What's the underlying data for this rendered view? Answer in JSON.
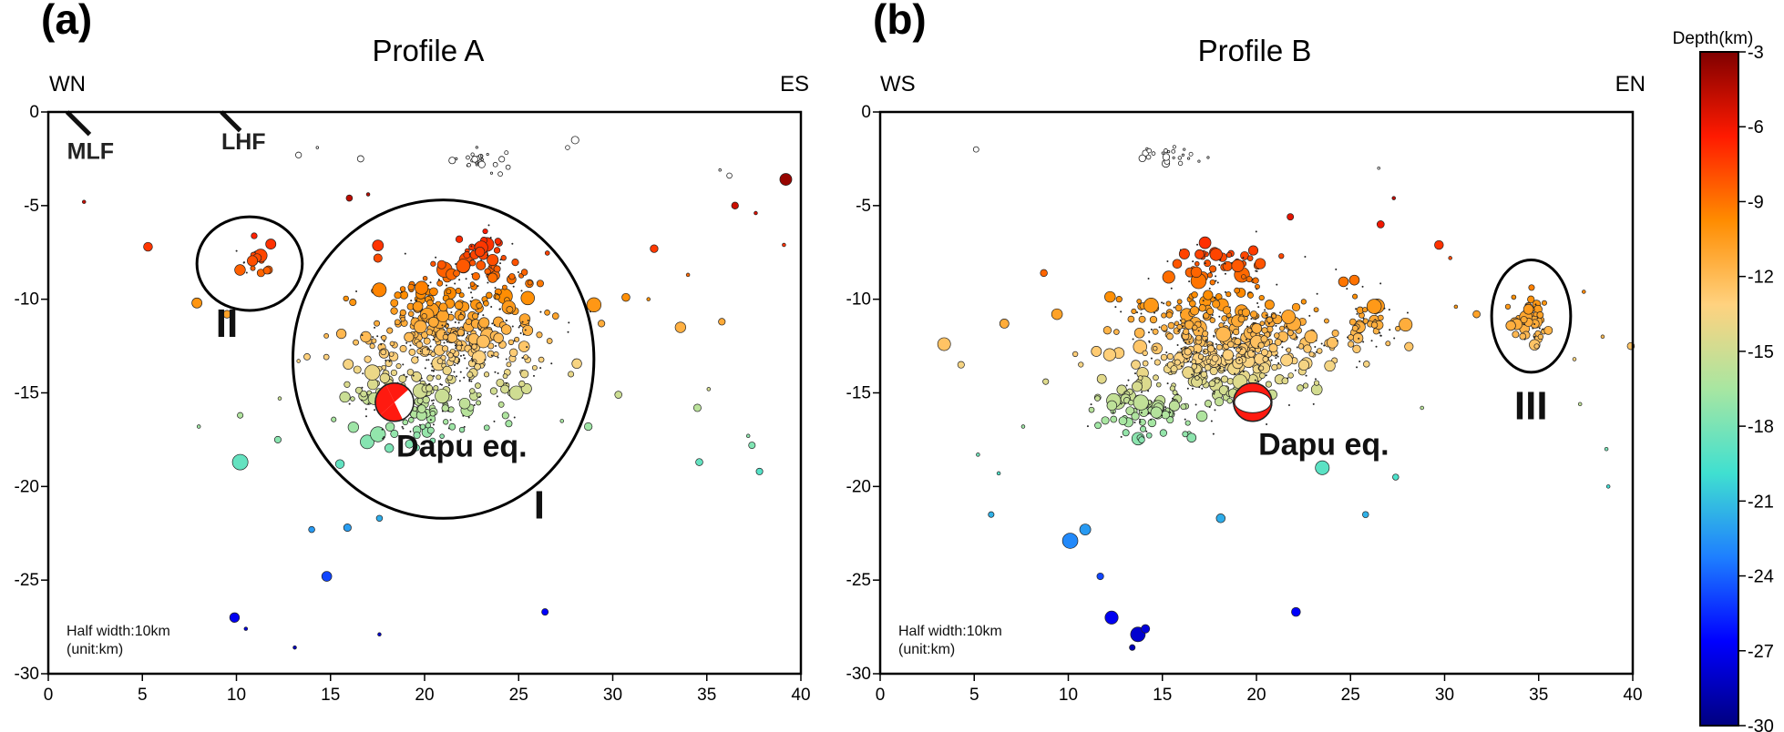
{
  "chart_data": [
    {
      "type": "scatter",
      "panel_label": "(a)",
      "title": "Profile A",
      "left_end_label": "WN",
      "right_end_label": "ES",
      "xlim": [
        0,
        40
      ],
      "ylim": [
        -30,
        0
      ],
      "xticks": [
        0,
        5,
        10,
        15,
        20,
        25,
        30,
        35,
        40
      ],
      "yticks": [
        0,
        -5,
        -10,
        -15,
        -20,
        -25,
        -30
      ],
      "half_width_note": "Half width:10km",
      "unit_note": "(unit:km)",
      "faults": [
        {
          "label": "MLF",
          "x1": 1.0,
          "y1": 0.0,
          "x2": 2.2,
          "y2": -1.2,
          "label_x": 1.0,
          "label_y": -2.5
        },
        {
          "label": "LHF",
          "x1": 9.2,
          "y1": 0.0,
          "x2": 10.2,
          "y2": -1.0,
          "label_x": 9.2,
          "label_y": -2.0
        }
      ],
      "clusters": [
        {
          "label": "I",
          "cx": 21.0,
          "cy": -13.2,
          "rx": 8.0,
          "ry": 8.5,
          "label_x": 25.8,
          "label_y": -21.7
        },
        {
          "label": "II",
          "cx": 10.7,
          "cy": -8.1,
          "rx": 2.8,
          "ry": 2.5,
          "label_x": 8.9,
          "label_y": -12.0
        }
      ],
      "mainshock": {
        "label": "Dapu eq.",
        "x": 18.4,
        "y": -15.5,
        "depth": -16,
        "label_x": 18.5,
        "label_y": -18.4,
        "style": "strike-slip"
      },
      "clouds": [
        {
          "cx": 21.5,
          "cy": -12.0,
          "sx": 4.2,
          "sy": 3.4,
          "n": 520
        },
        {
          "cx": 19.5,
          "cy": -15.5,
          "sx": 3.0,
          "sy": 1.8,
          "n": 140
        },
        {
          "cx": 23.2,
          "cy": -7.6,
          "sx": 1.4,
          "sy": 1.0,
          "n": 45
        },
        {
          "cx": 10.8,
          "cy": -7.9,
          "sx": 1.1,
          "sy": 0.8,
          "n": 24
        },
        {
          "cx": 23.0,
          "cy": -2.6,
          "sx": 1.3,
          "sy": 0.6,
          "n": 26
        }
      ],
      "events": [
        {
          "x": 1.9,
          "y": -4.8
        },
        {
          "x": 5.3,
          "y": -7.2
        },
        {
          "x": 7.9,
          "y": -10.2
        },
        {
          "x": 8.0,
          "y": -16.8
        },
        {
          "x": 10.2,
          "y": -16.2
        },
        {
          "x": 10.2,
          "y": -18.7
        },
        {
          "x": 12.2,
          "y": -17.5
        },
        {
          "x": 14.0,
          "y": -22.3
        },
        {
          "x": 14.8,
          "y": -24.8
        },
        {
          "x": 15.5,
          "y": -18.8
        },
        {
          "x": 15.9,
          "y": -22.2
        },
        {
          "x": 17.6,
          "y": -21.7
        },
        {
          "x": 17.6,
          "y": -27.9
        },
        {
          "x": 13.1,
          "y": -28.6
        },
        {
          "x": 9.9,
          "y": -27.0
        },
        {
          "x": 10.5,
          "y": -27.6
        },
        {
          "x": 26.4,
          "y": -26.7
        },
        {
          "x": 28.7,
          "y": -16.8
        },
        {
          "x": 27.3,
          "y": -16.5
        },
        {
          "x": 29.0,
          "y": -10.3
        },
        {
          "x": 29.4,
          "y": -11.3
        },
        {
          "x": 30.3,
          "y": -15.1
        },
        {
          "x": 31.9,
          "y": -10.0
        },
        {
          "x": 32.2,
          "y": -7.3
        },
        {
          "x": 33.6,
          "y": -11.5
        },
        {
          "x": 34.0,
          "y": -8.7
        },
        {
          "x": 34.5,
          "y": -15.8
        },
        {
          "x": 35.1,
          "y": -14.8
        },
        {
          "x": 35.7,
          "y": -3.1
        },
        {
          "x": 36.2,
          "y": -3.4
        },
        {
          "x": 37.2,
          "y": -17.3
        },
        {
          "x": 37.4,
          "y": -17.8
        },
        {
          "x": 37.8,
          "y": -19.2
        },
        {
          "x": 39.2,
          "y": -3.6
        },
        {
          "x": 39.1,
          "y": -7.1
        },
        {
          "x": 35.8,
          "y": -11.2
        },
        {
          "x": 34.6,
          "y": -18.7
        },
        {
          "x": 30.7,
          "y": -9.9
        },
        {
          "x": 28.0,
          "y": -1.5
        },
        {
          "x": 27.6,
          "y": -1.9
        },
        {
          "x": 13.3,
          "y": -2.3
        },
        {
          "x": 14.3,
          "y": -1.9
        },
        {
          "x": 16.6,
          "y": -2.5
        },
        {
          "x": 17.0,
          "y": -4.4
        },
        {
          "x": 16.0,
          "y": -4.6
        },
        {
          "x": 9.5,
          "y": -10.8
        },
        {
          "x": 13.3,
          "y": -13.3
        },
        {
          "x": 12.3,
          "y": -15.3
        },
        {
          "x": 37.6,
          "y": -5.4
        },
        {
          "x": 36.5,
          "y": -5.0
        }
      ]
    },
    {
      "type": "scatter",
      "panel_label": "(b)",
      "title": "Profile B",
      "left_end_label": "WS",
      "right_end_label": "EN",
      "xlim": [
        0,
        40
      ],
      "ylim": [
        -30,
        0
      ],
      "xticks": [
        0,
        5,
        10,
        15,
        20,
        25,
        30,
        35,
        40
      ],
      "yticks": [
        0,
        -5,
        -10,
        -15,
        -20,
        -25,
        -30
      ],
      "half_width_note": "Half width:10km",
      "unit_note": "(unit:km)",
      "faults": [],
      "clusters": [
        {
          "label": "III",
          "cx": 34.6,
          "cy": -10.9,
          "rx": 2.1,
          "ry": 3.0,
          "label_x": 33.7,
          "label_y": -16.4
        }
      ],
      "mainshock": {
        "label": "Dapu eq.",
        "x": 19.8,
        "y": -15.5,
        "depth": -16,
        "label_x": 20.1,
        "label_y": -18.3,
        "style": "thrust"
      },
      "clouds": [
        {
          "cx": 18.5,
          "cy": -12.5,
          "sx": 4.8,
          "sy": 3.0,
          "n": 560
        },
        {
          "cx": 14.0,
          "cy": -15.8,
          "sx": 2.6,
          "sy": 1.4,
          "n": 110
        },
        {
          "cx": 18.0,
          "cy": -8.2,
          "sx": 2.2,
          "sy": 1.2,
          "n": 55
        },
        {
          "cx": 34.6,
          "cy": -11.0,
          "sx": 0.9,
          "sy": 1.4,
          "n": 55
        },
        {
          "cx": 26.0,
          "cy": -11.5,
          "sx": 1.6,
          "sy": 1.5,
          "n": 60
        },
        {
          "cx": 15.5,
          "cy": -2.3,
          "sx": 1.2,
          "sy": 0.5,
          "n": 24
        }
      ],
      "events": [
        {
          "x": 5.1,
          "y": -2.0
        },
        {
          "x": 3.4,
          "y": -12.4
        },
        {
          "x": 4.3,
          "y": -13.5
        },
        {
          "x": 5.2,
          "y": -18.3
        },
        {
          "x": 6.3,
          "y": -19.3
        },
        {
          "x": 5.9,
          "y": -21.5
        },
        {
          "x": 9.4,
          "y": -10.8
        },
        {
          "x": 8.8,
          "y": -14.4
        },
        {
          "x": 7.6,
          "y": -16.8
        },
        {
          "x": 10.9,
          "y": -22.3
        },
        {
          "x": 11.7,
          "y": -24.8
        },
        {
          "x": 12.3,
          "y": -27.0
        },
        {
          "x": 13.7,
          "y": -27.9
        },
        {
          "x": 14.1,
          "y": -27.6
        },
        {
          "x": 13.4,
          "y": -28.6
        },
        {
          "x": 18.1,
          "y": -21.7
        },
        {
          "x": 22.1,
          "y": -26.7
        },
        {
          "x": 30.6,
          "y": -10.4
        },
        {
          "x": 31.7,
          "y": -10.8
        },
        {
          "x": 37.4,
          "y": -9.6
        },
        {
          "x": 38.4,
          "y": -12.0
        },
        {
          "x": 37.2,
          "y": -15.6
        },
        {
          "x": 38.7,
          "y": -20.0
        },
        {
          "x": 39.9,
          "y": -12.5
        },
        {
          "x": 29.7,
          "y": -7.1
        },
        {
          "x": 30.3,
          "y": -7.8
        },
        {
          "x": 26.5,
          "y": -3.0
        },
        {
          "x": 27.3,
          "y": -4.6
        },
        {
          "x": 12.7,
          "y": -10.0
        },
        {
          "x": 8.7,
          "y": -8.6
        },
        {
          "x": 10.1,
          "y": -22.9
        },
        {
          "x": 23.5,
          "y": -19.0
        },
        {
          "x": 25.8,
          "y": -21.5
        },
        {
          "x": 28.8,
          "y": -15.8
        },
        {
          "x": 27.4,
          "y": -19.5
        },
        {
          "x": 36.9,
          "y": -13.2
        },
        {
          "x": 38.6,
          "y": -18.0
        },
        {
          "x": 21.8,
          "y": -5.6
        },
        {
          "x": 26.6,
          "y": -6.0
        },
        {
          "x": 6.6,
          "y": -11.3
        }
      ]
    }
  ],
  "colorbar": {
    "title": "Depth(km)",
    "range": [
      -30,
      -3
    ],
    "ticks": [
      -3,
      -6,
      -9,
      -12,
      -15,
      -18,
      -21,
      -24,
      -27,
      -30
    ],
    "colormap": [
      "#800000",
      "#ff1a00",
      "#ff8c00",
      "#ffd27f",
      "#a8e6a1",
      "#40e0d0",
      "#1e7fff",
      "#0000ff",
      "#000080"
    ]
  }
}
